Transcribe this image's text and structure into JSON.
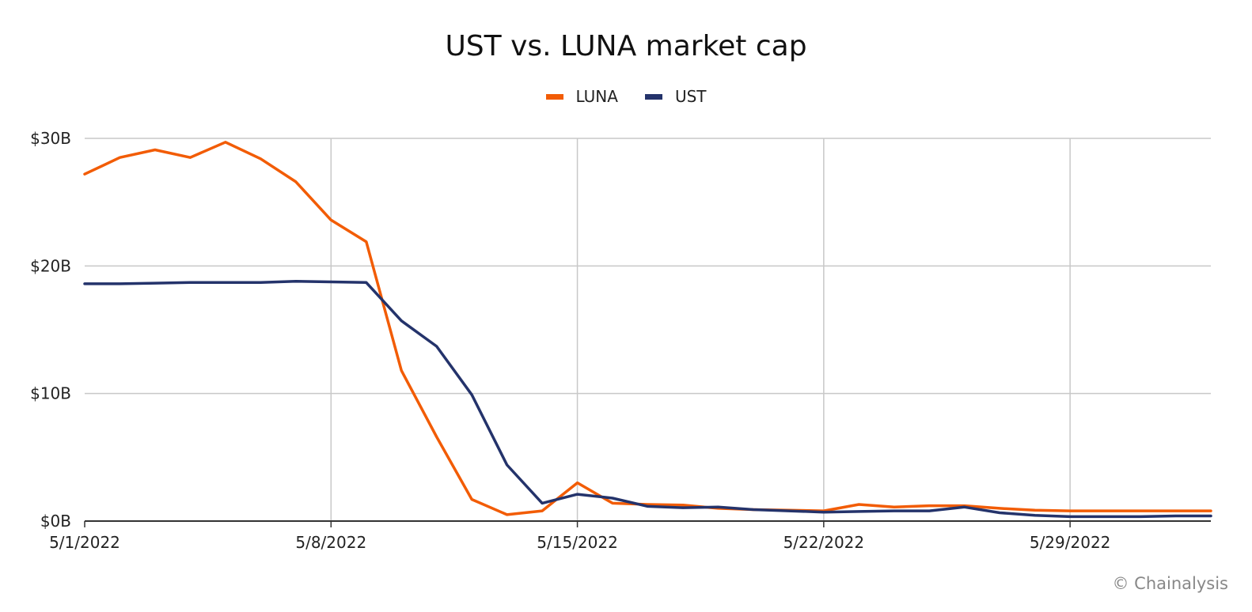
{
  "chart_data": {
    "type": "line",
    "title": "UST vs. LUNA market cap",
    "xlabel": "",
    "ylabel": "",
    "x_tick_labels": [
      "5/1/2022",
      "5/8/2022",
      "5/15/2022",
      "5/22/2022",
      "5/29/2022"
    ],
    "y_tick_labels": [
      "$0B",
      "$10B",
      "$20B",
      "$30B"
    ],
    "y_ticks": [
      0,
      10,
      20,
      30
    ],
    "ylim": [
      0,
      30
    ],
    "xlim": [
      "2022-05-01",
      "2022-06-02"
    ],
    "grid": true,
    "legend_position": "top",
    "x": [
      "2022-05-01",
      "2022-05-02",
      "2022-05-03",
      "2022-05-04",
      "2022-05-05",
      "2022-05-06",
      "2022-05-07",
      "2022-05-08",
      "2022-05-09",
      "2022-05-10",
      "2022-05-11",
      "2022-05-12",
      "2022-05-13",
      "2022-05-14",
      "2022-05-15",
      "2022-05-16",
      "2022-05-17",
      "2022-05-18",
      "2022-05-19",
      "2022-05-20",
      "2022-05-21",
      "2022-05-22",
      "2022-05-23",
      "2022-05-24",
      "2022-05-25",
      "2022-05-26",
      "2022-05-27",
      "2022-05-28",
      "2022-05-29",
      "2022-05-30",
      "2022-05-31",
      "2022-06-01",
      "2022-06-02"
    ],
    "series": [
      {
        "name": "LUNA",
        "color": "#f25c05",
        "values": [
          27.2,
          28.5,
          29.1,
          28.5,
          29.7,
          28.4,
          26.6,
          23.6,
          21.9,
          11.8,
          6.6,
          1.7,
          0.5,
          0.8,
          3.0,
          1.4,
          1.3,
          1.25,
          1.0,
          0.9,
          0.85,
          0.8,
          1.3,
          1.1,
          1.2,
          1.2,
          1.0,
          0.85,
          0.8,
          0.8,
          0.8,
          0.8,
          0.8
        ]
      },
      {
        "name": "UST",
        "color": "#24336b",
        "values": [
          18.6,
          18.6,
          18.65,
          18.7,
          18.7,
          18.7,
          18.8,
          18.75,
          18.7,
          15.7,
          13.7,
          9.9,
          4.4,
          1.4,
          2.1,
          1.8,
          1.15,
          1.05,
          1.1,
          0.9,
          0.8,
          0.7,
          0.75,
          0.8,
          0.8,
          1.1,
          0.65,
          0.45,
          0.35,
          0.35,
          0.35,
          0.4,
          0.4
        ]
      }
    ]
  },
  "footer": {
    "credit": "© Chainalysis"
  }
}
